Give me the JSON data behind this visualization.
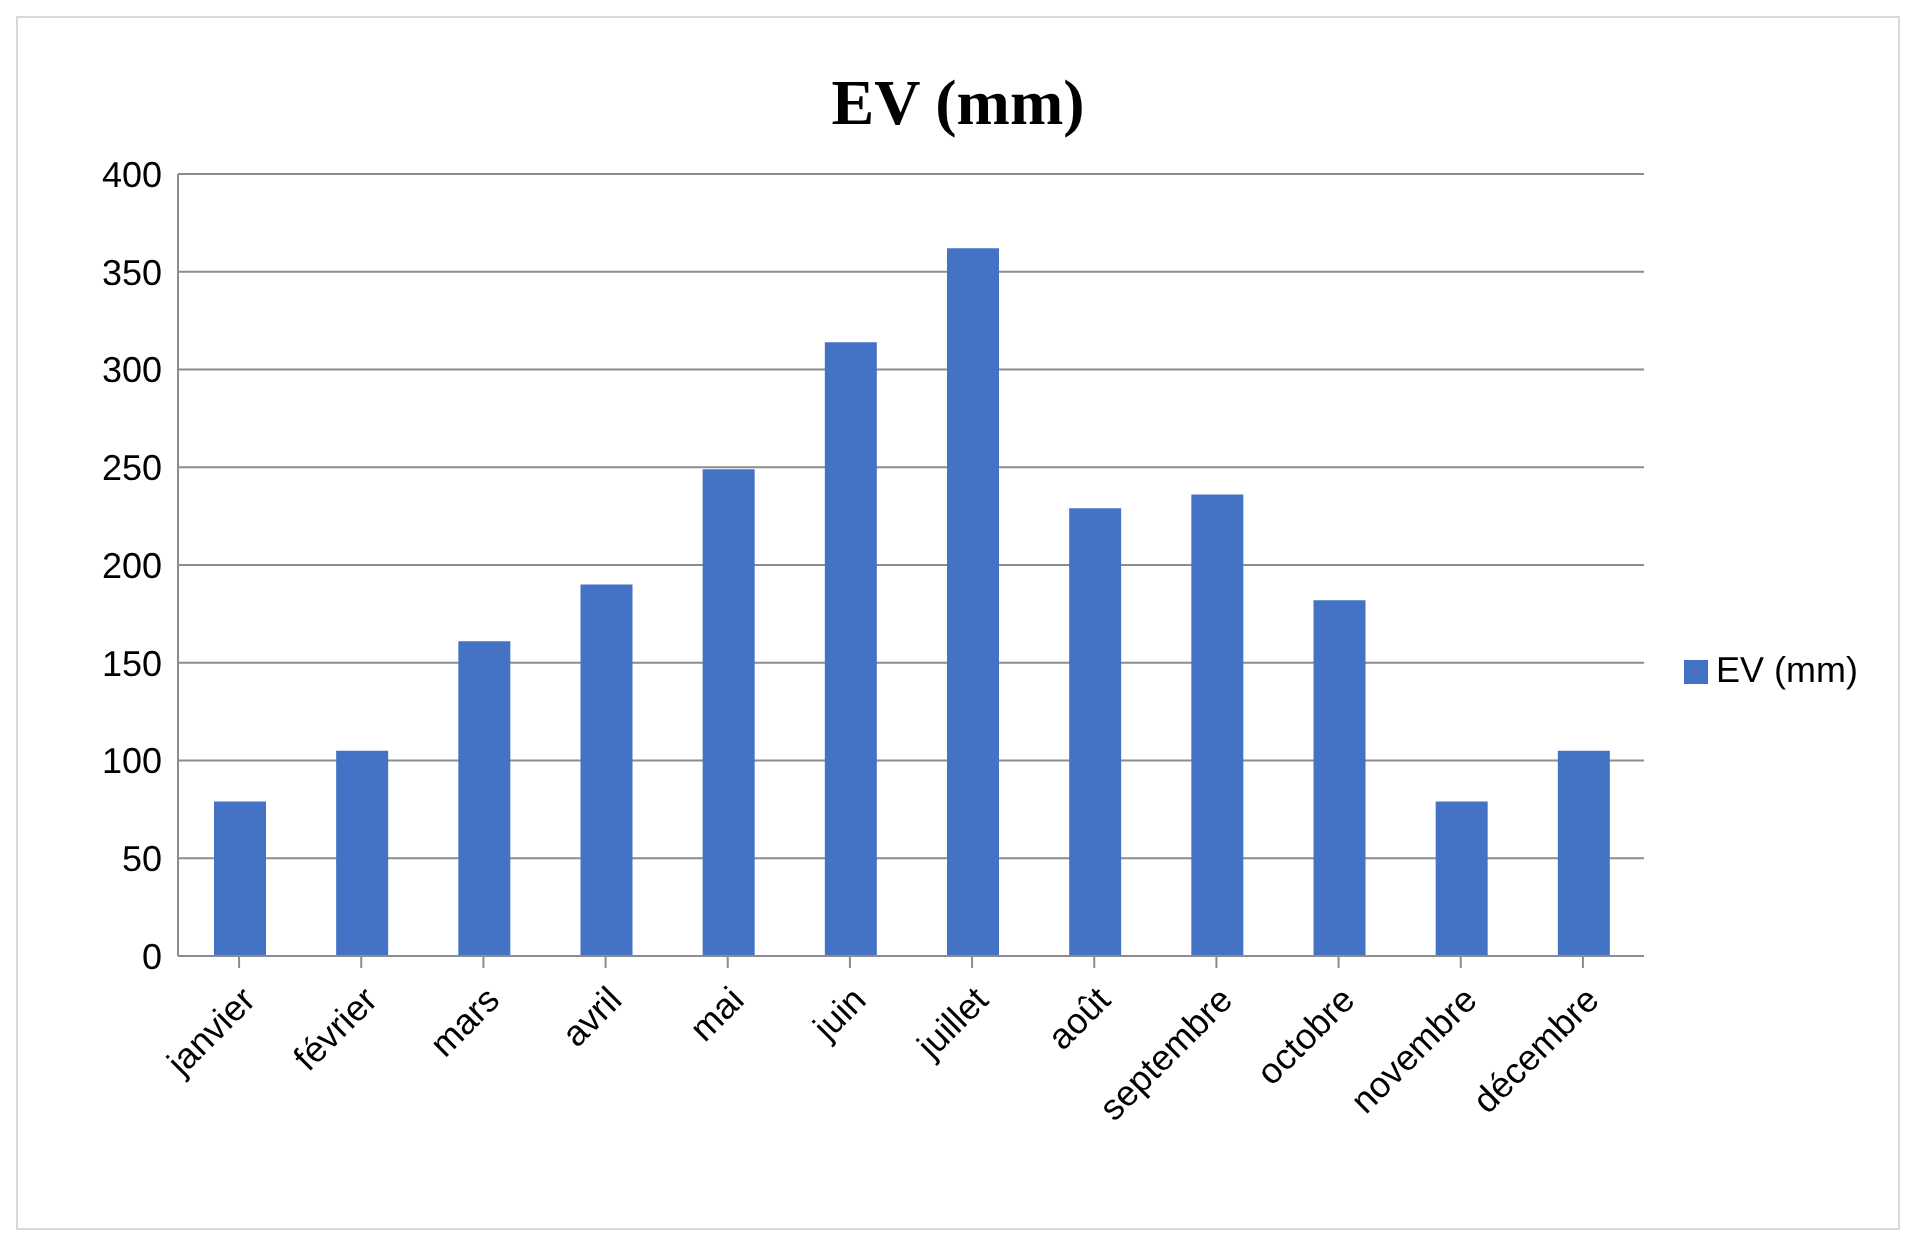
{
  "chart_data": {
    "type": "bar",
    "title": "EV (mm)",
    "categories": [
      "janvier",
      "février",
      "mars",
      "avril",
      "mai",
      "juin",
      "juillet",
      "août",
      "septembre",
      "octobre",
      "novembre",
      "décembre"
    ],
    "series": [
      {
        "name": "EV (mm)",
        "color": "#4472c4",
        "values": [
          79,
          105,
          161,
          190,
          249,
          314,
          362,
          229,
          236,
          182,
          79,
          105
        ]
      }
    ],
    "ylim": [
      0,
      400
    ],
    "yticks": [
      0,
      50,
      100,
      150,
      200,
      250,
      300,
      350,
      400
    ],
    "grid": "y",
    "legend": "right"
  }
}
